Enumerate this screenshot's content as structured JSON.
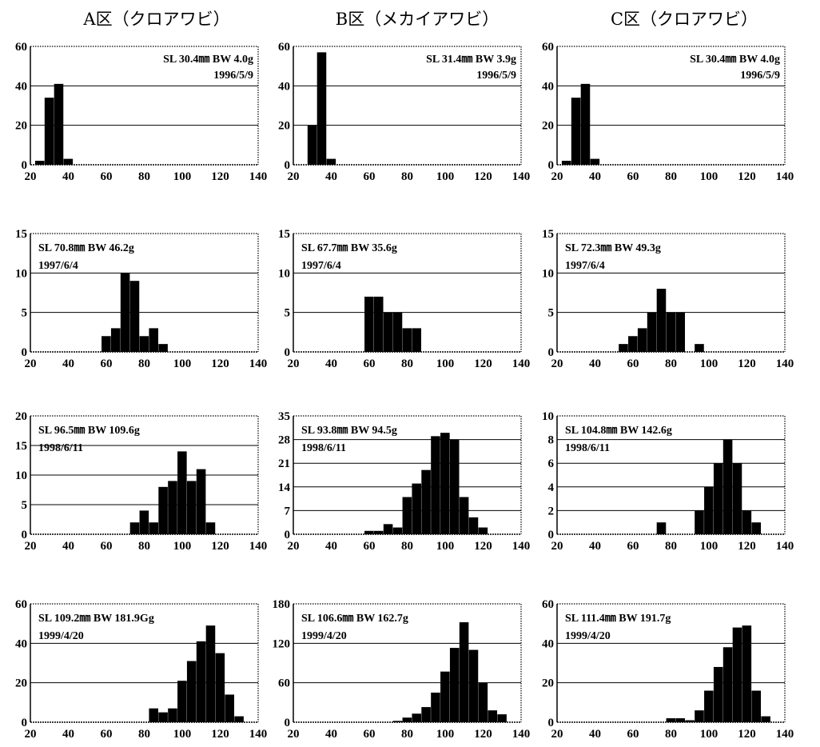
{
  "column_titles": [
    "A区（クロアワビ）",
    "B区（メカイアワビ）",
    "C区（クロアワビ）"
  ],
  "chart_data": [
    {
      "type": "bar",
      "row": 0,
      "col": 0,
      "sl": "SL 30.4㎜",
      "bw": "BW 4.0g",
      "date": "1996/5/9",
      "ann_pos": "top-right",
      "ylim": [
        0,
        60
      ],
      "yticks": [
        0,
        20,
        40,
        60
      ],
      "xlim": [
        20,
        140
      ],
      "xticks": [
        20,
        40,
        60,
        80,
        100,
        120,
        140
      ],
      "bin_width": 5,
      "x": [
        25,
        30,
        35,
        40
      ],
      "values": [
        2,
        34,
        41,
        3
      ]
    },
    {
      "type": "bar",
      "row": 0,
      "col": 1,
      "sl": "SL 31.4㎜",
      "bw": "BW 3.9g",
      "date": "1996/5/9",
      "ann_pos": "top-right",
      "ylim": [
        0,
        60
      ],
      "yticks": [
        0,
        20,
        40,
        60
      ],
      "xlim": [
        20,
        140
      ],
      "xticks": [
        20,
        40,
        60,
        80,
        100,
        120,
        140
      ],
      "bin_width": 5,
      "x": [
        30,
        35,
        40
      ],
      "values": [
        20,
        57,
        3
      ]
    },
    {
      "type": "bar",
      "row": 0,
      "col": 2,
      "sl": "SL 30.4㎜",
      "bw": "BW 4.0g",
      "date": "1996/5/9",
      "ann_pos": "top-right",
      "ylim": [
        0,
        60
      ],
      "yticks": [
        0,
        20,
        40,
        60
      ],
      "xlim": [
        20,
        140
      ],
      "xticks": [
        20,
        40,
        60,
        80,
        100,
        120,
        140
      ],
      "bin_width": 5,
      "x": [
        25,
        30,
        35,
        40
      ],
      "values": [
        2,
        34,
        41,
        3
      ]
    },
    {
      "type": "bar",
      "row": 1,
      "col": 0,
      "sl": "SL 70.8㎜",
      "bw": "BW 46.2g",
      "date": "1997/6/4",
      "ann_pos": "top-left",
      "ylim": [
        0,
        15
      ],
      "yticks": [
        0,
        5,
        10,
        15
      ],
      "xlim": [
        20,
        140
      ],
      "xticks": [
        20,
        40,
        60,
        80,
        100,
        120,
        140
      ],
      "bin_width": 5,
      "x": [
        60,
        65,
        70,
        75,
        80,
        85,
        90
      ],
      "values": [
        2,
        3,
        10,
        9,
        2,
        3,
        1
      ]
    },
    {
      "type": "bar",
      "row": 1,
      "col": 1,
      "sl": "SL 67.7㎜",
      "bw": "BW 35.6g",
      "date": "1997/6/4",
      "ann_pos": "top-left",
      "ylim": [
        0,
        15
      ],
      "yticks": [
        0,
        5,
        10,
        15
      ],
      "xlim": [
        20,
        140
      ],
      "xticks": [
        20,
        40,
        60,
        80,
        100,
        120,
        140
      ],
      "bin_width": 5,
      "x": [
        60,
        65,
        70,
        75,
        80,
        85
      ],
      "values": [
        7,
        7,
        5,
        5,
        3,
        3
      ]
    },
    {
      "type": "bar",
      "row": 1,
      "col": 2,
      "sl": "SL 72.3㎜",
      "bw": "BW 49.3g",
      "date": "1997/6/4",
      "ann_pos": "top-left",
      "ylim": [
        0,
        15
      ],
      "yticks": [
        0,
        5,
        10,
        15
      ],
      "xlim": [
        20,
        140
      ],
      "xticks": [
        20,
        40,
        60,
        80,
        100,
        120,
        140
      ],
      "bin_width": 5,
      "x": [
        55,
        60,
        65,
        70,
        75,
        80,
        85,
        95
      ],
      "values": [
        1,
        2,
        3,
        5,
        8,
        5,
        5,
        1
      ]
    },
    {
      "type": "bar",
      "row": 2,
      "col": 0,
      "sl": "SL 96.5㎜",
      "bw": "BW 109.6g",
      "date": "1998/6/11",
      "ann_pos": "top-left",
      "ylim": [
        0,
        20
      ],
      "yticks": [
        0,
        5,
        10,
        15,
        20
      ],
      "xlim": [
        20,
        140
      ],
      "xticks": [
        20,
        40,
        60,
        80,
        100,
        120,
        140
      ],
      "bin_width": 5,
      "x": [
        75,
        80,
        85,
        90,
        95,
        100,
        105,
        110,
        115
      ],
      "values": [
        2,
        4,
        2,
        8,
        9,
        14,
        9,
        11,
        2
      ]
    },
    {
      "type": "bar",
      "row": 2,
      "col": 1,
      "sl": "SL 93.8㎜",
      "bw": "BW 94.5g",
      "date": "1998/6/11",
      "ann_pos": "top-left",
      "ylim": [
        0,
        35
      ],
      "yticks": [
        0,
        7,
        14,
        21,
        28,
        35
      ],
      "xlim": [
        20,
        140
      ],
      "xticks": [
        20,
        40,
        60,
        80,
        100,
        120,
        140
      ],
      "bin_width": 5,
      "x": [
        60,
        65,
        70,
        75,
        80,
        85,
        90,
        95,
        100,
        105,
        110,
        115,
        120
      ],
      "values": [
        1,
        1,
        3,
        2,
        11,
        15,
        19,
        29,
        30,
        28,
        11,
        5,
        2
      ]
    },
    {
      "type": "bar",
      "row": 2,
      "col": 2,
      "sl": "SL 104.8㎜",
      "bw": "BW 142.6g",
      "date": "1998/6/11",
      "ann_pos": "top-left",
      "ylim": [
        0,
        10
      ],
      "yticks": [
        0,
        2,
        4,
        6,
        8,
        10
      ],
      "xlim": [
        20,
        140
      ],
      "xticks": [
        20,
        40,
        60,
        80,
        100,
        120,
        140
      ],
      "bin_width": 5,
      "x": [
        75,
        95,
        100,
        105,
        110,
        115,
        120,
        125
      ],
      "values": [
        1,
        2,
        4,
        6,
        8,
        6,
        2,
        1
      ]
    },
    {
      "type": "bar",
      "row": 3,
      "col": 0,
      "sl": "SL 109.2㎜",
      "bw": "BW 181.9Gg",
      "date": "1999/4/20",
      "ann_pos": "top-left",
      "ylim": [
        0,
        60
      ],
      "yticks": [
        0,
        20,
        40,
        60
      ],
      "xlim": [
        20,
        140
      ],
      "xticks": [
        20,
        40,
        60,
        80,
        100,
        120,
        140
      ],
      "bin_width": 5,
      "x": [
        85,
        90,
        95,
        100,
        105,
        110,
        115,
        120,
        125,
        130
      ],
      "values": [
        7,
        5,
        7,
        21,
        31,
        41,
        49,
        35,
        14,
        3
      ]
    },
    {
      "type": "bar",
      "row": 3,
      "col": 1,
      "sl": "SL 106.6㎜",
      "bw": "BW 162.7g",
      "date": "1999/4/20",
      "ann_pos": "top-left",
      "ylim": [
        0,
        180
      ],
      "yticks": [
        0,
        60,
        120,
        180
      ],
      "xlim": [
        20,
        140
      ],
      "xticks": [
        20,
        40,
        60,
        80,
        100,
        120,
        140
      ],
      "bin_width": 5,
      "x": [
        75,
        80,
        85,
        90,
        95,
        100,
        105,
        110,
        115,
        120,
        125,
        130
      ],
      "values": [
        2,
        7,
        13,
        23,
        45,
        77,
        113,
        152,
        110,
        60,
        18,
        12
      ]
    },
    {
      "type": "bar",
      "row": 3,
      "col": 2,
      "sl": "SL 111.4㎜",
      "bw": "BW 191.7g",
      "date": "1999/4/20",
      "ann_pos": "top-left",
      "ylim": [
        0,
        60
      ],
      "yticks": [
        0,
        20,
        40,
        60
      ],
      "xlim": [
        20,
        140
      ],
      "xticks": [
        20,
        40,
        60,
        80,
        100,
        120,
        140
      ],
      "bin_width": 5,
      "x": [
        80,
        85,
        90,
        95,
        100,
        105,
        110,
        115,
        120,
        125,
        130
      ],
      "values": [
        2,
        2,
        1,
        6,
        16,
        28,
        38,
        48,
        49,
        16,
        3
      ]
    }
  ]
}
